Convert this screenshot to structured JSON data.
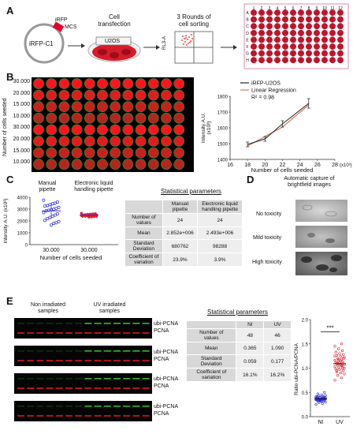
{
  "panels": {
    "a": "A",
    "b": "B",
    "c": "C",
    "d": "D",
    "e": "E"
  },
  "a": {
    "plasmid": "iRFP-C1",
    "iRFP": "iRFP",
    "mcs": "MCS",
    "cell_transfection": "Cell\ntransfection",
    "u2os": "U2OS",
    "sorting": "3 Rounds of\ncell sorting",
    "rl3": "RL3-A",
    "plate_rows": [
      "A",
      "B",
      "C",
      "D",
      "E",
      "F",
      "G",
      "H"
    ],
    "plate_cols": [
      "1",
      "2",
      "3",
      "4",
      "5",
      "6",
      "7",
      "8",
      "9",
      "10",
      "11",
      "12"
    ]
  },
  "b": {
    "ylabel": "Number of cells seeded",
    "rows": [
      "30.000",
      "20.000",
      "15.000",
      "10.000",
      "30.000",
      "20.000",
      "15.000",
      "10.000"
    ],
    "colors": {
      "iRFP": "#222222",
      "regression": "#d9774f"
    }
  },
  "c": {
    "manual": "Manual\npipette",
    "electronic": "Electronic liquid\nhandling pipette",
    "ylabel": "Intensity A.U. (x10³)",
    "yticks": [
      "4000",
      "3000",
      "2000",
      "1000",
      "0"
    ],
    "xticks": [
      "30.000",
      "30.000"
    ],
    "xlabel": "Number of cells seeded",
    "stat_title": "Statistical parameters",
    "table": {
      "head": [
        "",
        "Manual\npipette",
        "Electronic liquid\nhandling pipette"
      ],
      "rows": [
        [
          "Number of\nvalues",
          "24",
          "24"
        ],
        [
          "Mean",
          "2.852e+006",
          "2.493e+006"
        ],
        [
          "Standard\nDeviation",
          "680762",
          "98288"
        ],
        [
          "Coefficient of\nvariation",
          "23.9%",
          "3.9%"
        ]
      ]
    }
  },
  "d": {
    "title": "Automatic capture of\nbrightfield images",
    "labels": [
      "No toxicity",
      "Mild toxicity",
      "High toxicity"
    ]
  },
  "e": {
    "non_irr": "Non irradiated\nsamples",
    "uv_irr": "UV irradiated\nsamples",
    "row_labels": [
      "ubi-PCNA\nPCNA",
      "ubi-PCNA\nPCNA",
      "ubi-PCNA\nPCNA",
      "ubi-PCNA\nPCNA"
    ],
    "stat_title": "Statistical parameters",
    "table": {
      "head": [
        "",
        "NI",
        "UV"
      ],
      "rows": [
        [
          "Number of\nvalues",
          "48",
          "46"
        ],
        [
          "Mean",
          "0.365",
          "1.090"
        ],
        [
          "Standard\nDeviation",
          "0.059",
          "0.177"
        ],
        [
          "Coefficient of\nvariation",
          "16.1%",
          "16.2%"
        ]
      ]
    },
    "ylabel": "Ratio ubi-PCNA/PCNA",
    "yticks": [
      "2.0",
      "1.5",
      "1.0",
      "0.5",
      "0.0"
    ],
    "xticks": [
      "NI",
      "UV"
    ],
    "sig": "***"
  },
  "chart_data": [
    {
      "type": "line",
      "title": "",
      "xlabel": "Number of cells seeded",
      "x_unit": "(x10³)",
      "ylabel": "Intensity A.U.\n(x10³)",
      "xlim": [
        16,
        28
      ],
      "ylim": [
        1400,
        1800
      ],
      "xticks": [
        16,
        18,
        20,
        22,
        24,
        26,
        28
      ],
      "yticks": [
        1400,
        1500,
        1600,
        1700,
        1800
      ],
      "legend_placement": "top-left",
      "x": [
        18,
        20,
        22,
        25
      ],
      "series": [
        {
          "name": "iRFP-U2OS",
          "values": [
            1495,
            1530,
            1625,
            1755
          ],
          "err": [
            15,
            15,
            20,
            30
          ]
        },
        {
          "name": "Linear Regression",
          "values": [
            1485,
            1545,
            1605,
            1745
          ]
        }
      ],
      "annotations": [
        "R² = 0.98"
      ]
    },
    {
      "type": "scatter",
      "categories": [
        "Manual pipette",
        "Electronic liquid handling pipette"
      ],
      "ylim": [
        0,
        4000
      ],
      "series": [
        {
          "name": "Manual pipette",
          "mean": 2852,
          "sd": 680,
          "values": [
            3750,
            3600,
            3500,
            3450,
            3380,
            3300,
            3250,
            3150,
            3050,
            3000,
            2950,
            2900,
            2850,
            2700,
            2600,
            2500,
            2400,
            2300,
            2200,
            2050,
            1950,
            1850,
            1800,
            1650
          ]
        },
        {
          "name": "Electronic liquid handling pipette",
          "mean": 2493,
          "sd": 98,
          "values": [
            2650,
            2620,
            2600,
            2580,
            2560,
            2540,
            2520,
            2510,
            2500,
            2490,
            2480,
            2470,
            2460,
            2450,
            2440,
            2430,
            2420,
            2410,
            2400,
            2390,
            2380,
            2360,
            2340,
            2320
          ]
        }
      ]
    },
    {
      "type": "scatter",
      "categories": [
        "NI",
        "UV"
      ],
      "ylim": [
        0,
        2.0
      ],
      "series": [
        {
          "name": "NI",
          "mean": 0.365,
          "sd": 0.059,
          "values": [
            0.25,
            0.27,
            0.29,
            0.3,
            0.31,
            0.32,
            0.33,
            0.33,
            0.34,
            0.34,
            0.35,
            0.35,
            0.36,
            0.36,
            0.37,
            0.37,
            0.38,
            0.38,
            0.39,
            0.39,
            0.4,
            0.4,
            0.41,
            0.42,
            0.43,
            0.44,
            0.45,
            0.47,
            0.5,
            0.36,
            0.35,
            0.37,
            0.34,
            0.38,
            0.36,
            0.33,
            0.39,
            0.35,
            0.37,
            0.36,
            0.32,
            0.41,
            0.38,
            0.34,
            0.36,
            0.37,
            0.35,
            0.36
          ]
        },
        {
          "name": "UV",
          "mean": 1.09,
          "sd": 0.177,
          "values": [
            0.75,
            0.8,
            0.85,
            0.88,
            0.9,
            0.92,
            0.95,
            0.97,
            0.98,
            1.0,
            1.02,
            1.03,
            1.05,
            1.06,
            1.07,
            1.08,
            1.09,
            1.1,
            1.11,
            1.12,
            1.13,
            1.15,
            1.16,
            1.18,
            1.2,
            1.22,
            1.24,
            1.26,
            1.28,
            1.3,
            1.33,
            1.36,
            1.4,
            1.45,
            1.05,
            1.1,
            1.0,
            1.15,
            0.95,
            1.2,
            1.08,
            1.12,
            1.04,
            1.18,
            1.25,
            1.5
          ]
        }
      ]
    }
  ]
}
